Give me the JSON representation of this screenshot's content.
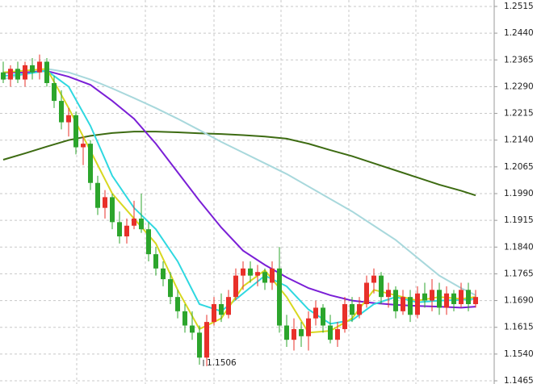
{
  "chart_data": {
    "type": "candlestick",
    "ylim": [
      1.1456,
      1.2533
    ],
    "yticks": [
      {
        "value": 1.2515,
        "label": "1.2515"
      },
      {
        "value": 1.244,
        "label": "1.2440"
      },
      {
        "value": 1.2365,
        "label": "1.2365"
      },
      {
        "value": 1.229,
        "label": "1.2290"
      },
      {
        "value": 1.2215,
        "label": "1.2215"
      },
      {
        "value": 1.214,
        "label": "1.2140"
      },
      {
        "value": 1.2065,
        "label": "1.2065"
      },
      {
        "value": 1.199,
        "label": "1.1990"
      },
      {
        "value": 1.1915,
        "label": "1.1915"
      },
      {
        "value": 1.184,
        "label": "1.1840"
      },
      {
        "value": 1.1765,
        "label": "1.1765"
      },
      {
        "value": 1.169,
        "label": "1.1690"
      },
      {
        "value": 1.1615,
        "label": "1.1615"
      },
      {
        "value": 1.154,
        "label": "1.1540"
      },
      {
        "value": 1.1465,
        "label": "1.1465"
      }
    ],
    "grid": true,
    "up_color": "#e8302a",
    "down_color": "#2ca52c",
    "open": [
      1.233,
      1.231,
      1.234,
      1.231,
      1.235,
      1.233,
      1.236,
      1.23,
      1.225,
      1.219,
      1.221,
      1.212,
      1.213,
      1.202,
      1.195,
      1.198,
      1.191,
      1.187,
      1.19,
      1.192,
      1.189,
      1.182,
      1.178,
      1.175,
      1.17,
      1.166,
      1.162,
      1.16,
      1.153,
      1.163,
      1.168,
      1.165,
      1.17,
      1.176,
      1.178,
      1.176,
      1.177,
      1.174,
      1.178,
      1.162,
      1.158,
      1.161,
      1.159,
      1.164,
      1.167,
      1.162,
      1.158,
      1.161,
      1.168,
      1.165,
      1.168,
      1.174,
      1.176,
      1.17,
      1.172,
      1.166,
      1.17,
      1.165,
      1.171,
      1.169,
      1.172,
      1.167,
      1.171,
      1.168,
      1.172,
      1.168
    ],
    "high": [
      1.236,
      1.235,
      1.236,
      1.236,
      1.237,
      1.238,
      1.237,
      1.232,
      1.228,
      1.223,
      1.222,
      1.215,
      1.214,
      1.204,
      1.2,
      1.199,
      1.194,
      1.192,
      1.197,
      1.199,
      1.191,
      1.184,
      1.18,
      1.177,
      1.172,
      1.168,
      1.166,
      1.162,
      1.165,
      1.17,
      1.171,
      1.172,
      1.178,
      1.18,
      1.18,
      1.179,
      1.178,
      1.18,
      1.184,
      1.165,
      1.164,
      1.163,
      1.166,
      1.169,
      1.168,
      1.165,
      1.163,
      1.17,
      1.17,
      1.17,
      1.176,
      1.178,
      1.177,
      1.174,
      1.173,
      1.172,
      1.172,
      1.173,
      1.174,
      1.175,
      1.174,
      1.173,
      1.172,
      1.174,
      1.174,
      1.172
    ],
    "low": [
      1.23,
      1.229,
      1.23,
      1.229,
      1.231,
      1.231,
      1.229,
      1.223,
      1.217,
      1.215,
      1.21,
      1.207,
      1.2,
      1.193,
      1.192,
      1.189,
      1.185,
      1.185,
      1.189,
      1.188,
      1.18,
      1.176,
      1.173,
      1.168,
      1.164,
      1.16,
      1.158,
      1.151,
      1.1506,
      1.162,
      1.163,
      1.164,
      1.169,
      1.172,
      1.174,
      1.173,
      1.172,
      1.172,
      1.16,
      1.156,
      1.155,
      1.156,
      1.155,
      1.162,
      1.16,
      1.157,
      1.156,
      1.16,
      1.163,
      1.164,
      1.167,
      1.171,
      1.168,
      1.167,
      1.164,
      1.165,
      1.163,
      1.164,
      1.167,
      1.166,
      1.165,
      1.165,
      1.166,
      1.167,
      1.166,
      1.167
    ],
    "close": [
      1.231,
      1.234,
      1.231,
      1.235,
      1.233,
      1.236,
      1.23,
      1.225,
      1.219,
      1.221,
      1.212,
      1.213,
      1.202,
      1.195,
      1.198,
      1.191,
      1.187,
      1.19,
      1.192,
      1.189,
      1.182,
      1.178,
      1.175,
      1.17,
      1.166,
      1.162,
      1.16,
      1.153,
      1.163,
      1.168,
      1.165,
      1.17,
      1.176,
      1.178,
      1.176,
      1.177,
      1.174,
      1.178,
      1.162,
      1.158,
      1.161,
      1.159,
      1.164,
      1.167,
      1.162,
      1.158,
      1.161,
      1.168,
      1.165,
      1.168,
      1.174,
      1.176,
      1.17,
      1.172,
      1.166,
      1.17,
      1.165,
      1.171,
      1.169,
      1.172,
      1.167,
      1.171,
      1.168,
      1.172,
      1.168,
      1.17
    ],
    "series": [
      {
        "color": "#3d6b12",
        "x": [
          0,
          3,
          6,
          9,
          12,
          15,
          18,
          21,
          24,
          27,
          30,
          33,
          36,
          39,
          42,
          45,
          48,
          51,
          54,
          57,
          60,
          63,
          65
        ],
        "values": [
          1.2085,
          1.2103,
          1.2122,
          1.214,
          1.2152,
          1.216,
          1.2164,
          1.2164,
          1.2162,
          1.2159,
          1.2157,
          1.2154,
          1.215,
          1.2144,
          1.213,
          1.2112,
          1.2095,
          1.2075,
          1.2055,
          1.2035,
          1.2015,
          1.1998,
          1.1985
        ]
      },
      {
        "color": "#a8d8dc",
        "x": [
          0,
          3,
          6,
          9,
          12,
          15,
          18,
          21,
          24,
          27,
          30,
          33,
          36,
          39,
          42,
          45,
          48,
          51,
          54,
          57,
          60,
          63,
          65
        ],
        "values": [
          1.2311,
          1.2325,
          1.234,
          1.233,
          1.231,
          1.2285,
          1.2258,
          1.223,
          1.22,
          1.2168,
          1.2135,
          1.2105,
          1.2075,
          1.2045,
          1.201,
          1.1975,
          1.194,
          1.19,
          1.186,
          1.181,
          1.176,
          1.1725,
          1.1705
        ]
      },
      {
        "color": "#7a1fd6",
        "x": [
          0,
          3,
          6,
          9,
          12,
          15,
          18,
          21,
          24,
          27,
          30,
          33,
          36,
          39,
          42,
          45,
          48,
          51,
          54,
          57,
          60,
          63,
          65
        ],
        "values": [
          1.2329,
          1.233,
          1.2334,
          1.2318,
          1.2295,
          1.225,
          1.22,
          1.213,
          1.205,
          1.197,
          1.1895,
          1.183,
          1.179,
          1.1755,
          1.1725,
          1.1705,
          1.169,
          1.1683,
          1.1678,
          1.1675,
          1.1673,
          1.167,
          1.1673
        ]
      },
      {
        "color": "#2fd8e0",
        "x": [
          0,
          3,
          6,
          9,
          12,
          15,
          18,
          21,
          24,
          27,
          30,
          33,
          36,
          39,
          42,
          45,
          48,
          51,
          54,
          57,
          60,
          63,
          65
        ],
        "values": [
          1.232,
          1.2325,
          1.2335,
          1.229,
          1.218,
          1.204,
          1.195,
          1.189,
          1.18,
          1.168,
          1.166,
          1.171,
          1.176,
          1.173,
          1.1665,
          1.1625,
          1.1635,
          1.168,
          1.17,
          1.1685,
          1.169,
          1.1692,
          1.1695
        ]
      },
      {
        "color": "#d8d820",
        "x": [
          0,
          3,
          6,
          9,
          12,
          15,
          18,
          21,
          24,
          27,
          30,
          33,
          36,
          39,
          42,
          45,
          48,
          51,
          54,
          57,
          60,
          63,
          65
        ],
        "values": [
          1.233,
          1.2335,
          1.234,
          1.223,
          1.211,
          1.199,
          1.192,
          1.185,
          1.172,
          1.161,
          1.164,
          1.173,
          1.1775,
          1.17,
          1.16,
          1.1605,
          1.164,
          1.172,
          1.1705,
          1.169,
          1.17,
          1.1695,
          1.17
        ]
      }
    ],
    "low_annotation": {
      "label": "1.1506",
      "value": 1.1506,
      "index": 28
    }
  }
}
